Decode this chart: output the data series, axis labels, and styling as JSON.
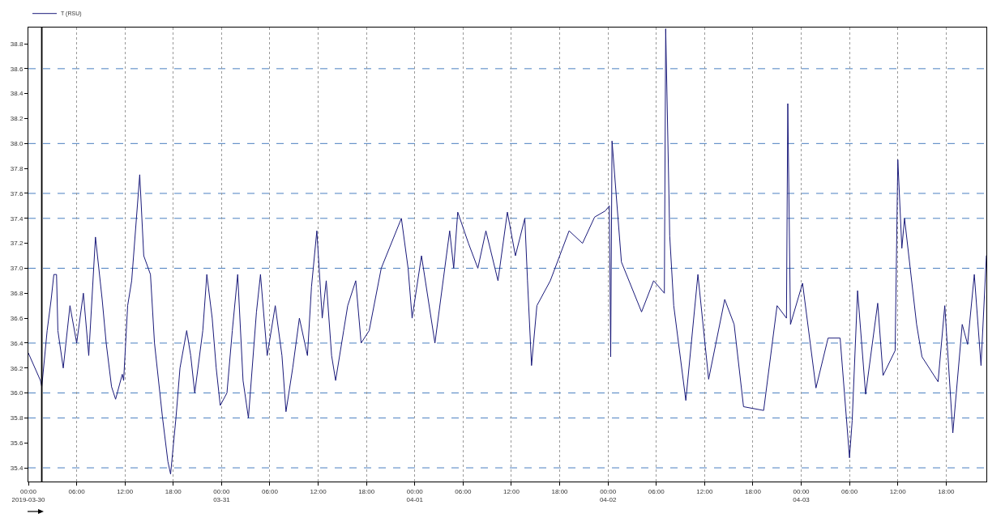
{
  "chart_data": {
    "type": "line",
    "legend": "top left",
    "grid": "x",
    "line_style": "solid",
    "marker": "none",
    "xlim": [
      "2019-03-30T00:00",
      "2019-04-03T23:00"
    ],
    "xticks": [
      {
        "value": "2019-03-30T00:00",
        "label": "00:00\n2019-03-30"
      },
      {
        "value": "2019-03-30T06:00",
        "label": "06:00"
      },
      {
        "value": "2019-03-30T12:00",
        "label": "12:00"
      },
      {
        "value": "2019-03-30T18:00",
        "label": "18:00"
      },
      {
        "value": "2019-03-31T00:00",
        "label": "00:00\n03-31"
      },
      {
        "value": "2019-03-31T06:00",
        "label": "06:00"
      },
      {
        "value": "2019-03-31T12:00",
        "label": "12:00"
      },
      {
        "value": "2019-03-31T18:00",
        "label": "18:00"
      },
      {
        "value": "2019-04-01T00:00",
        "label": "00:00\n04-01"
      },
      {
        "value": "2019-04-01T06:00",
        "label": "06:00"
      },
      {
        "value": "2019-04-01T12:00",
        "label": "12:00"
      },
      {
        "value": "2019-04-01T18:00",
        "label": "18:00"
      },
      {
        "value": "2019-04-02T00:00",
        "label": "00:00\n04-02"
      },
      {
        "value": "2019-04-02T06:00",
        "label": "06:00"
      },
      {
        "value": "2019-04-02T12:00",
        "label": "12:00"
      },
      {
        "value": "2019-04-02T18:00",
        "label": "18:00"
      },
      {
        "value": "2019-04-03T00:00",
        "label": "00:00\n04-03"
      },
      {
        "value": "2019-04-03T06:00",
        "label": "06:00"
      },
      {
        "value": "2019-04-03T12:00",
        "label": "12:00"
      },
      {
        "value": "2019-04-03T18:00",
        "label": "18:00"
      }
    ],
    "ylim": [
      35.29,
      38.93
    ],
    "yticks": [
      35.4,
      35.6,
      35.8,
      {
        "value": 36,
        "label": "36.0"
      },
      36.2,
      36.4,
      36.6,
      36.8,
      {
        "value": 37,
        "label": "37.0"
      },
      37.2,
      37.4,
      37.6,
      37.8,
      {
        "value": 38,
        "label": "38.0"
      },
      38.2,
      38.4,
      38.6,
      38.8
    ],
    "ref_lines": [
      {
        "axis": "y",
        "value": 38.6,
        "color": "#4a7fc0",
        "line_style": "dashed"
      },
      {
        "axis": "y",
        "value": 38.0,
        "color": "#4a7fc0",
        "line_style": "dashed"
      },
      {
        "axis": "y",
        "value": 37.6,
        "color": "#4a7fc0",
        "line_style": "dashed"
      },
      {
        "axis": "y",
        "value": 37.4,
        "color": "#4a7fc0",
        "line_style": "dashed"
      },
      {
        "axis": "y",
        "value": 37.0,
        "color": "#4a7fc0",
        "line_style": "dashed"
      },
      {
        "axis": "y",
        "value": 36.4,
        "color": "#4a7fc0",
        "line_style": "dashed"
      },
      {
        "axis": "y",
        "value": 36.0,
        "color": "#4a7fc0",
        "line_style": "dashed"
      },
      {
        "axis": "y",
        "value": 35.8,
        "color": "#4a7fc0",
        "line_style": "dashed"
      },
      {
        "axis": "y",
        "value": 35.4,
        "color": "#4a7fc0",
        "line_style": "dashed"
      },
      {
        "axis": "x",
        "value": "2019-03-30T01:40",
        "color": "#000000",
        "line_style": "solid"
      }
    ],
    "series": [
      {
        "name": "T (RSU)",
        "color": "#1a1a7a",
        "x": [
          "2019-03-30T00:00",
          "2019-03-30T01:30",
          "2019-03-30T01:40",
          "2019-03-30T02:20",
          "2019-03-30T02:50",
          "2019-03-30T03:10",
          "2019-03-30T03:30",
          "2019-03-30T03:40",
          "2019-03-30T04:20",
          "2019-03-30T05:10",
          "2019-03-30T06:00",
          "2019-03-30T06:50",
          "2019-03-30T07:30",
          "2019-03-30T08:20",
          "2019-03-30T09:10",
          "2019-03-30T09:40",
          "2019-03-30T10:20",
          "2019-03-30T10:50",
          "2019-03-30T11:40",
          "2019-03-30T11:50",
          "2019-03-30T12:20",
          "2019-03-30T12:50",
          "2019-03-30T13:50",
          "2019-03-30T14:20",
          "2019-03-30T15:10",
          "2019-03-30T15:40",
          "2019-03-30T16:40",
          "2019-03-30T17:20",
          "2019-03-30T17:40",
          "2019-03-30T18:20",
          "2019-03-30T18:50",
          "2019-03-30T19:40",
          "2019-03-30T20:10",
          "2019-03-30T20:40",
          "2019-03-30T21:40",
          "2019-03-30T22:10",
          "2019-03-30T22:50",
          "2019-03-30T23:20",
          "2019-03-30T23:50",
          "2019-03-31T00:40",
          "2019-03-31T01:20",
          "2019-03-31T02:00",
          "2019-03-31T02:40",
          "2019-03-31T03:20",
          "2019-03-31T04:20",
          "2019-03-31T04:50",
          "2019-03-31T05:40",
          "2019-03-31T06:40",
          "2019-03-31T07:30",
          "2019-03-31T08:00",
          "2019-03-31T08:50",
          "2019-03-31T09:40",
          "2019-03-31T10:40",
          "2019-03-31T11:10",
          "2019-03-31T11:50",
          "2019-03-31T12:30",
          "2019-03-31T13:00",
          "2019-03-31T13:40",
          "2019-03-31T14:10",
          "2019-03-31T15:10",
          "2019-03-31T15:40",
          "2019-03-31T16:40",
          "2019-03-31T17:20",
          "2019-03-31T18:20",
          "2019-03-31T19:50",
          "2019-03-31T22:20",
          "2019-03-31T23:10",
          "2019-03-31T23:40",
          "2019-04-01T00:50",
          "2019-04-01T02:30",
          "2019-04-01T04:20",
          "2019-04-01T04:50",
          "2019-04-01T05:20",
          "2019-04-01T06:40",
          "2019-04-01T07:50",
          "2019-04-01T08:50",
          "2019-04-01T10:20",
          "2019-04-01T11:30",
          "2019-04-01T12:30",
          "2019-04-01T13:40",
          "2019-04-01T14:00",
          "2019-04-01T14:30",
          "2019-04-01T15:10",
          "2019-04-01T16:50",
          "2019-04-01T19:10",
          "2019-04-01T20:50",
          "2019-04-01T22:20",
          "2019-04-01T23:40",
          "2019-04-02T00:10",
          "2019-04-02T00:20",
          "2019-04-02T00:30",
          "2019-04-02T01:40",
          "2019-04-02T04:10",
          "2019-04-02T05:40",
          "2019-04-02T07:00",
          "2019-04-02T07:10",
          "2019-04-02T07:40",
          "2019-04-02T08:10",
          "2019-04-02T09:40",
          "2019-04-02T11:10",
          "2019-04-02T12:30",
          "2019-04-02T14:30",
          "2019-04-02T15:40",
          "2019-04-02T16:50",
          "2019-04-02T19:20",
          "2019-04-02T21:00",
          "2019-04-02T22:10",
          "2019-04-02T22:20",
          "2019-04-02T22:40",
          "2019-04-03T00:10",
          "2019-04-03T01:50",
          "2019-04-03T03:20",
          "2019-04-03T04:50",
          "2019-04-03T06:00",
          "2019-04-03T06:20",
          "2019-04-03T07:00",
          "2019-04-03T08:00",
          "2019-04-03T09:30",
          "2019-04-03T10:10",
          "2019-04-03T11:40",
          "2019-04-03T12:00",
          "2019-04-03T12:30",
          "2019-04-03T12:50",
          "2019-04-03T14:20",
          "2019-04-03T15:00",
          "2019-04-03T17:00",
          "2019-04-03T17:50",
          "2019-04-03T18:50",
          "2019-04-03T20:00",
          "2019-04-03T20:40",
          "2019-04-03T21:30",
          "2019-04-03T22:20",
          "2019-04-03T23:00"
        ],
        "values": [
          36.32,
          36.1,
          36.05,
          36.5,
          36.75,
          36.95,
          36.95,
          36.5,
          36.2,
          36.7,
          36.4,
          36.8,
          36.3,
          37.25,
          36.75,
          36.4,
          36.05,
          35.95,
          36.15,
          36.1,
          36.7,
          36.9,
          37.75,
          37.1,
          36.95,
          36.4,
          35.8,
          35.45,
          35.35,
          35.8,
          36.2,
          36.5,
          36.3,
          36.0,
          36.5,
          36.95,
          36.6,
          36.2,
          35.9,
          36.0,
          36.5,
          36.95,
          36.1,
          35.8,
          36.65,
          36.95,
          36.3,
          36.7,
          36.3,
          35.85,
          36.2,
          36.6,
          36.3,
          36.85,
          37.3,
          36.6,
          36.9,
          36.3,
          36.1,
          36.5,
          36.7,
          36.9,
          36.4,
          36.5,
          37.0,
          37.4,
          37.0,
          36.6,
          37.1,
          36.4,
          37.3,
          37.0,
          37.45,
          37.2,
          37.0,
          37.3,
          36.9,
          37.45,
          37.1,
          37.4,
          36.9,
          36.22,
          36.7,
          36.9,
          37.3,
          37.2,
          37.41,
          37.46,
          37.5,
          36.29,
          38.02,
          37.05,
          36.65,
          36.9,
          36.8,
          38.92,
          37.26,
          36.7,
          35.94,
          36.95,
          36.11,
          36.75,
          36.55,
          35.89,
          35.86,
          36.7,
          36.6,
          38.32,
          36.55,
          36.88,
          36.04,
          36.44,
          36.44,
          35.48,
          35.78,
          36.82,
          35.99,
          36.72,
          36.14,
          36.34,
          37.87,
          37.16,
          37.4,
          36.55,
          36.29,
          36.09,
          36.7,
          35.68,
          36.55,
          36.39,
          36.95,
          36.22,
          37.1
        ]
      }
    ]
  }
}
